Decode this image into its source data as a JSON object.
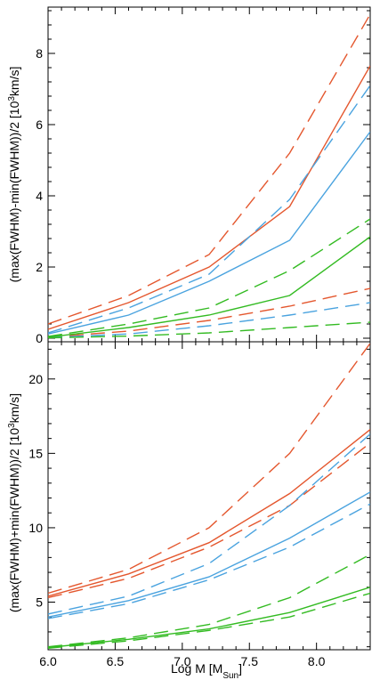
{
  "chart_data": [
    {
      "type": "line",
      "ylabel": "(max(FWHM)-min(FWHM))/2 [10³km/s]",
      "ylabel_main": "(max(FWHM)-min(FWHM))/2 [10",
      "ylabel_sup": "3",
      "ylabel_tail": "km/s]",
      "xlim": [
        6.0,
        8.4
      ],
      "ylim": [
        -0.1,
        9.3
      ],
      "yticks": [
        0,
        2,
        4,
        6,
        8
      ],
      "ytick_labels": [
        "0",
        "2",
        "4",
        "6",
        "8"
      ],
      "x": [
        6.0,
        6.6,
        7.2,
        7.8,
        8.4
      ],
      "series": [
        {
          "color": "#e4572e",
          "style": "solid",
          "values": [
            0.25,
            1.0,
            2.0,
            3.7,
            7.65
          ]
        },
        {
          "color": "#e4572e",
          "style": "dashed",
          "values": [
            0.4,
            1.2,
            2.35,
            5.2,
            9.1
          ]
        },
        {
          "color": "#e4572e",
          "style": "dashed",
          "values": [
            0.03,
            0.2,
            0.5,
            0.9,
            1.4
          ]
        },
        {
          "color": "#4aa3df",
          "style": "solid",
          "values": [
            0.12,
            0.65,
            1.6,
            2.75,
            5.8
          ]
        },
        {
          "color": "#4aa3df",
          "style": "dashed",
          "values": [
            0.15,
            0.85,
            1.8,
            3.9,
            7.1
          ]
        },
        {
          "color": "#4aa3df",
          "style": "dashed",
          "values": [
            0.02,
            0.12,
            0.35,
            0.65,
            1.0
          ]
        },
        {
          "color": "#33bb22",
          "style": "solid",
          "values": [
            0.03,
            0.3,
            0.65,
            1.2,
            2.85
          ]
        },
        {
          "color": "#33bb22",
          "style": "dashed",
          "values": [
            0.05,
            0.4,
            0.85,
            1.9,
            3.35
          ]
        },
        {
          "color": "#33bb22",
          "style": "dashed",
          "values": [
            0.01,
            0.06,
            0.15,
            0.3,
            0.45
          ]
        }
      ]
    },
    {
      "type": "line",
      "xlabel": "Log M [M_Sun]",
      "xlabel_main": "Log M [M",
      "xlabel_sub": "Sun",
      "xlabel_tail": "]",
      "ylabel": "(max(FWHM)+min(FWHM))/2 [10³km/s]",
      "ylabel_main": "(max(FWHM)+min(FWHM))/2 [10",
      "ylabel_sup": "3",
      "ylabel_tail": "km/s]",
      "xlim": [
        6.0,
        8.4
      ],
      "ylim": [
        1.8,
        22.5
      ],
      "xticks": [
        6.0,
        6.5,
        7.0,
        7.5,
        8.0
      ],
      "xtick_labels": [
        "6.0",
        "6.5",
        "7.0",
        "7.5",
        "8.0"
      ],
      "yticks": [
        5,
        10,
        15,
        20
      ],
      "ytick_labels": [
        "5",
        "10",
        "15",
        "20"
      ],
      "x": [
        6.0,
        6.6,
        7.2,
        7.8,
        8.4
      ],
      "series": [
        {
          "color": "#e4572e",
          "style": "solid",
          "values": [
            5.4,
            6.9,
            9.0,
            12.3,
            16.6
          ]
        },
        {
          "color": "#e4572e",
          "style": "dashed",
          "values": [
            5.6,
            7.2,
            10.0,
            15.0,
            22.4
          ]
        },
        {
          "color": "#e4572e",
          "style": "dashed",
          "values": [
            5.3,
            6.6,
            8.7,
            11.5,
            15.7
          ]
        },
        {
          "color": "#4aa3df",
          "style": "solid",
          "values": [
            4.0,
            5.1,
            6.7,
            9.3,
            12.4
          ]
        },
        {
          "color": "#4aa3df",
          "style": "dashed",
          "values": [
            4.2,
            5.4,
            7.6,
            11.5,
            16.3
          ]
        },
        {
          "color": "#4aa3df",
          "style": "dashed",
          "values": [
            3.9,
            4.9,
            6.5,
            8.7,
            11.6
          ]
        },
        {
          "color": "#33bb22",
          "style": "solid",
          "values": [
            1.95,
            2.5,
            3.2,
            4.3,
            6.0
          ]
        },
        {
          "color": "#33bb22",
          "style": "dashed",
          "values": [
            2.0,
            2.6,
            3.5,
            5.3,
            8.2
          ]
        },
        {
          "color": "#33bb22",
          "style": "dashed",
          "values": [
            1.9,
            2.4,
            3.1,
            4.0,
            5.6
          ]
        }
      ]
    }
  ]
}
